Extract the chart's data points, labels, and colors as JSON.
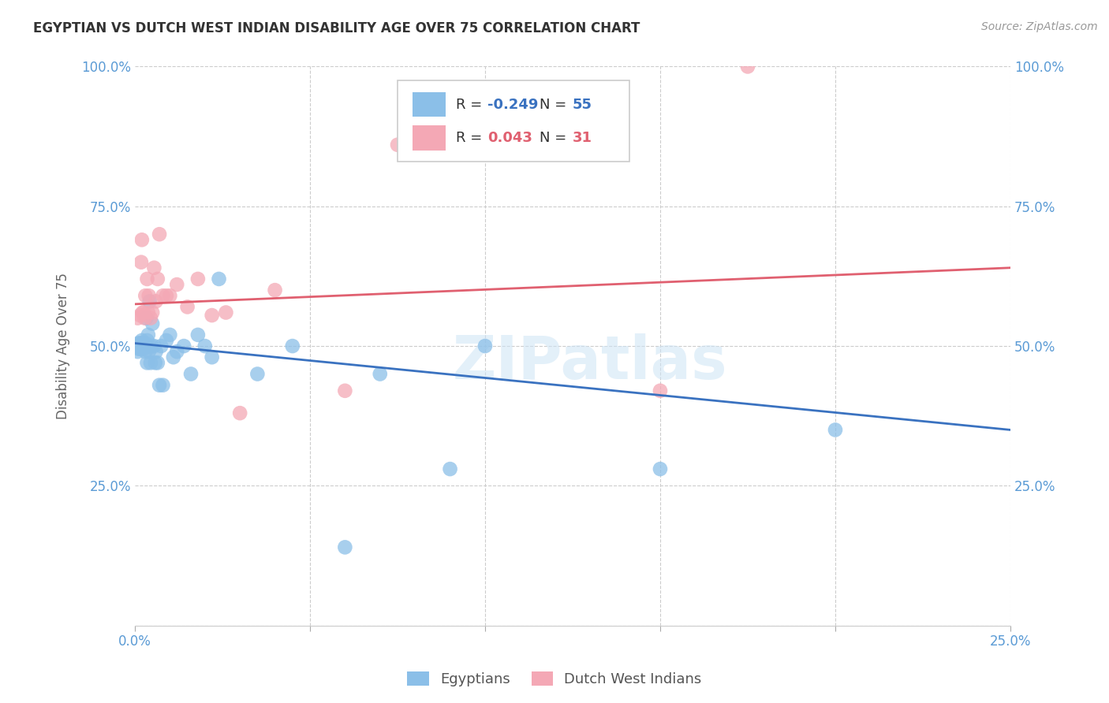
{
  "title": "EGYPTIAN VS DUTCH WEST INDIAN DISABILITY AGE OVER 75 CORRELATION CHART",
  "source": "Source: ZipAtlas.com",
  "ylabel": "Disability Age Over 75",
  "xlim": [
    0.0,
    0.25
  ],
  "ylim": [
    0.0,
    1.0
  ],
  "legend_r_blue": "-0.249",
  "legend_n_blue": "55",
  "legend_r_pink": "0.043",
  "legend_n_pink": "31",
  "blue_color": "#8BBFE8",
  "pink_color": "#F4A8B5",
  "blue_line_color": "#3A72C0",
  "pink_line_color": "#E06070",
  "watermark": "ZIPatlas",
  "blue_x": [
    0.0005,
    0.0008,
    0.001,
    0.001,
    0.0012,
    0.0015,
    0.0015,
    0.0018,
    0.0018,
    0.002,
    0.002,
    0.002,
    0.0022,
    0.0022,
    0.0025,
    0.0025,
    0.0025,
    0.0028,
    0.0028,
    0.003,
    0.003,
    0.0033,
    0.0035,
    0.0035,
    0.0038,
    0.004,
    0.0042,
    0.0045,
    0.0048,
    0.005,
    0.0055,
    0.0058,
    0.006,
    0.0065,
    0.007,
    0.0075,
    0.008,
    0.009,
    0.01,
    0.011,
    0.012,
    0.014,
    0.016,
    0.018,
    0.02,
    0.022,
    0.024,
    0.035,
    0.045,
    0.06,
    0.07,
    0.09,
    0.1,
    0.15,
    0.2
  ],
  "blue_y": [
    0.5,
    0.49,
    0.505,
    0.495,
    0.5,
    0.505,
    0.495,
    0.5,
    0.5,
    0.505,
    0.495,
    0.51,
    0.5,
    0.5,
    0.505,
    0.5,
    0.495,
    0.5,
    0.5,
    0.505,
    0.49,
    0.55,
    0.51,
    0.47,
    0.52,
    0.49,
    0.58,
    0.47,
    0.5,
    0.54,
    0.5,
    0.47,
    0.49,
    0.47,
    0.43,
    0.5,
    0.43,
    0.51,
    0.52,
    0.48,
    0.49,
    0.5,
    0.45,
    0.52,
    0.5,
    0.48,
    0.62,
    0.45,
    0.5,
    0.14,
    0.45,
    0.28,
    0.5,
    0.28,
    0.35
  ],
  "pink_x": [
    0.0008,
    0.0015,
    0.0018,
    0.002,
    0.0022,
    0.0025,
    0.0028,
    0.003,
    0.0035,
    0.0038,
    0.004,
    0.0045,
    0.005,
    0.0055,
    0.006,
    0.0065,
    0.007,
    0.008,
    0.009,
    0.01,
    0.012,
    0.015,
    0.018,
    0.022,
    0.026,
    0.03,
    0.04,
    0.06,
    0.075,
    0.15,
    0.175
  ],
  "pink_y": [
    0.55,
    0.555,
    0.65,
    0.69,
    0.56,
    0.56,
    0.55,
    0.59,
    0.62,
    0.56,
    0.59,
    0.55,
    0.56,
    0.64,
    0.58,
    0.62,
    0.7,
    0.59,
    0.59,
    0.59,
    0.61,
    0.57,
    0.62,
    0.555,
    0.56,
    0.38,
    0.6,
    0.42,
    0.86,
    0.42,
    1.0
  ],
  "blue_trend_x": [
    0.0,
    0.25
  ],
  "blue_trend_y": [
    0.505,
    0.35
  ],
  "pink_trend_x": [
    0.0,
    0.25
  ],
  "pink_trend_y": [
    0.575,
    0.64
  ]
}
